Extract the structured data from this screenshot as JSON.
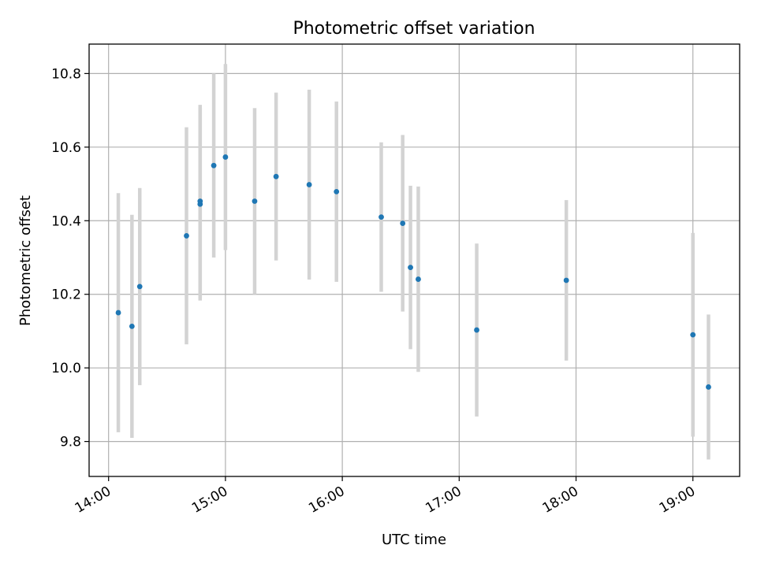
{
  "chart_data": {
    "type": "scatter",
    "title": "Photometric offset variation",
    "xlabel": "UTC time",
    "ylabel": "Photometric offset",
    "xlim": [
      "13:50",
      "19:24"
    ],
    "ylim": [
      9.705,
      10.88
    ],
    "xticks": [
      "14:00",
      "15:00",
      "16:00",
      "17:00",
      "18:00",
      "19:00"
    ],
    "yticks": [
      9.8,
      10.0,
      10.2,
      10.4,
      10.6,
      10.8
    ],
    "ytick_labels": [
      "9.8",
      "10.0",
      "10.2",
      "10.4",
      "10.6",
      "10.8"
    ],
    "grid": true,
    "colors": {
      "marker": "#1f77b4",
      "errorbar": "#d3d3d3"
    },
    "points": [
      {
        "t": "14:05",
        "y": 10.15,
        "err": 0.325
      },
      {
        "t": "14:12",
        "y": 10.113,
        "err": 0.303
      },
      {
        "t": "14:16",
        "y": 10.221,
        "err": 0.268
      },
      {
        "t": "14:40",
        "y": 10.359,
        "err": 0.295
      },
      {
        "t": "14:47",
        "y": 10.445,
        "err": 0.262
      },
      {
        "t": "14:47",
        "y": 10.453,
        "err": 0.262
      },
      {
        "t": "14:54",
        "y": 10.55,
        "err": 0.25
      },
      {
        "t": "15:00",
        "y": 10.573,
        "err": 0.253
      },
      {
        "t": "15:15",
        "y": 10.453,
        "err": 0.253
      },
      {
        "t": "15:26",
        "y": 10.52,
        "err": 0.228
      },
      {
        "t": "15:43",
        "y": 10.498,
        "err": 0.258
      },
      {
        "t": "15:57",
        "y": 10.479,
        "err": 0.245
      },
      {
        "t": "16:20",
        "y": 10.41,
        "err": 0.203
      },
      {
        "t": "16:31",
        "y": 10.393,
        "err": 0.24
      },
      {
        "t": "16:35",
        "y": 10.273,
        "err": 0.222
      },
      {
        "t": "16:39",
        "y": 10.241,
        "err": 0.252
      },
      {
        "t": "17:09",
        "y": 10.103,
        "err": 0.235
      },
      {
        "t": "17:55",
        "y": 10.238,
        "err": 0.218
      },
      {
        "t": "19:00",
        "y": 10.09,
        "err": 0.277
      },
      {
        "t": "19:08",
        "y": 9.948,
        "err": 0.197
      }
    ]
  }
}
